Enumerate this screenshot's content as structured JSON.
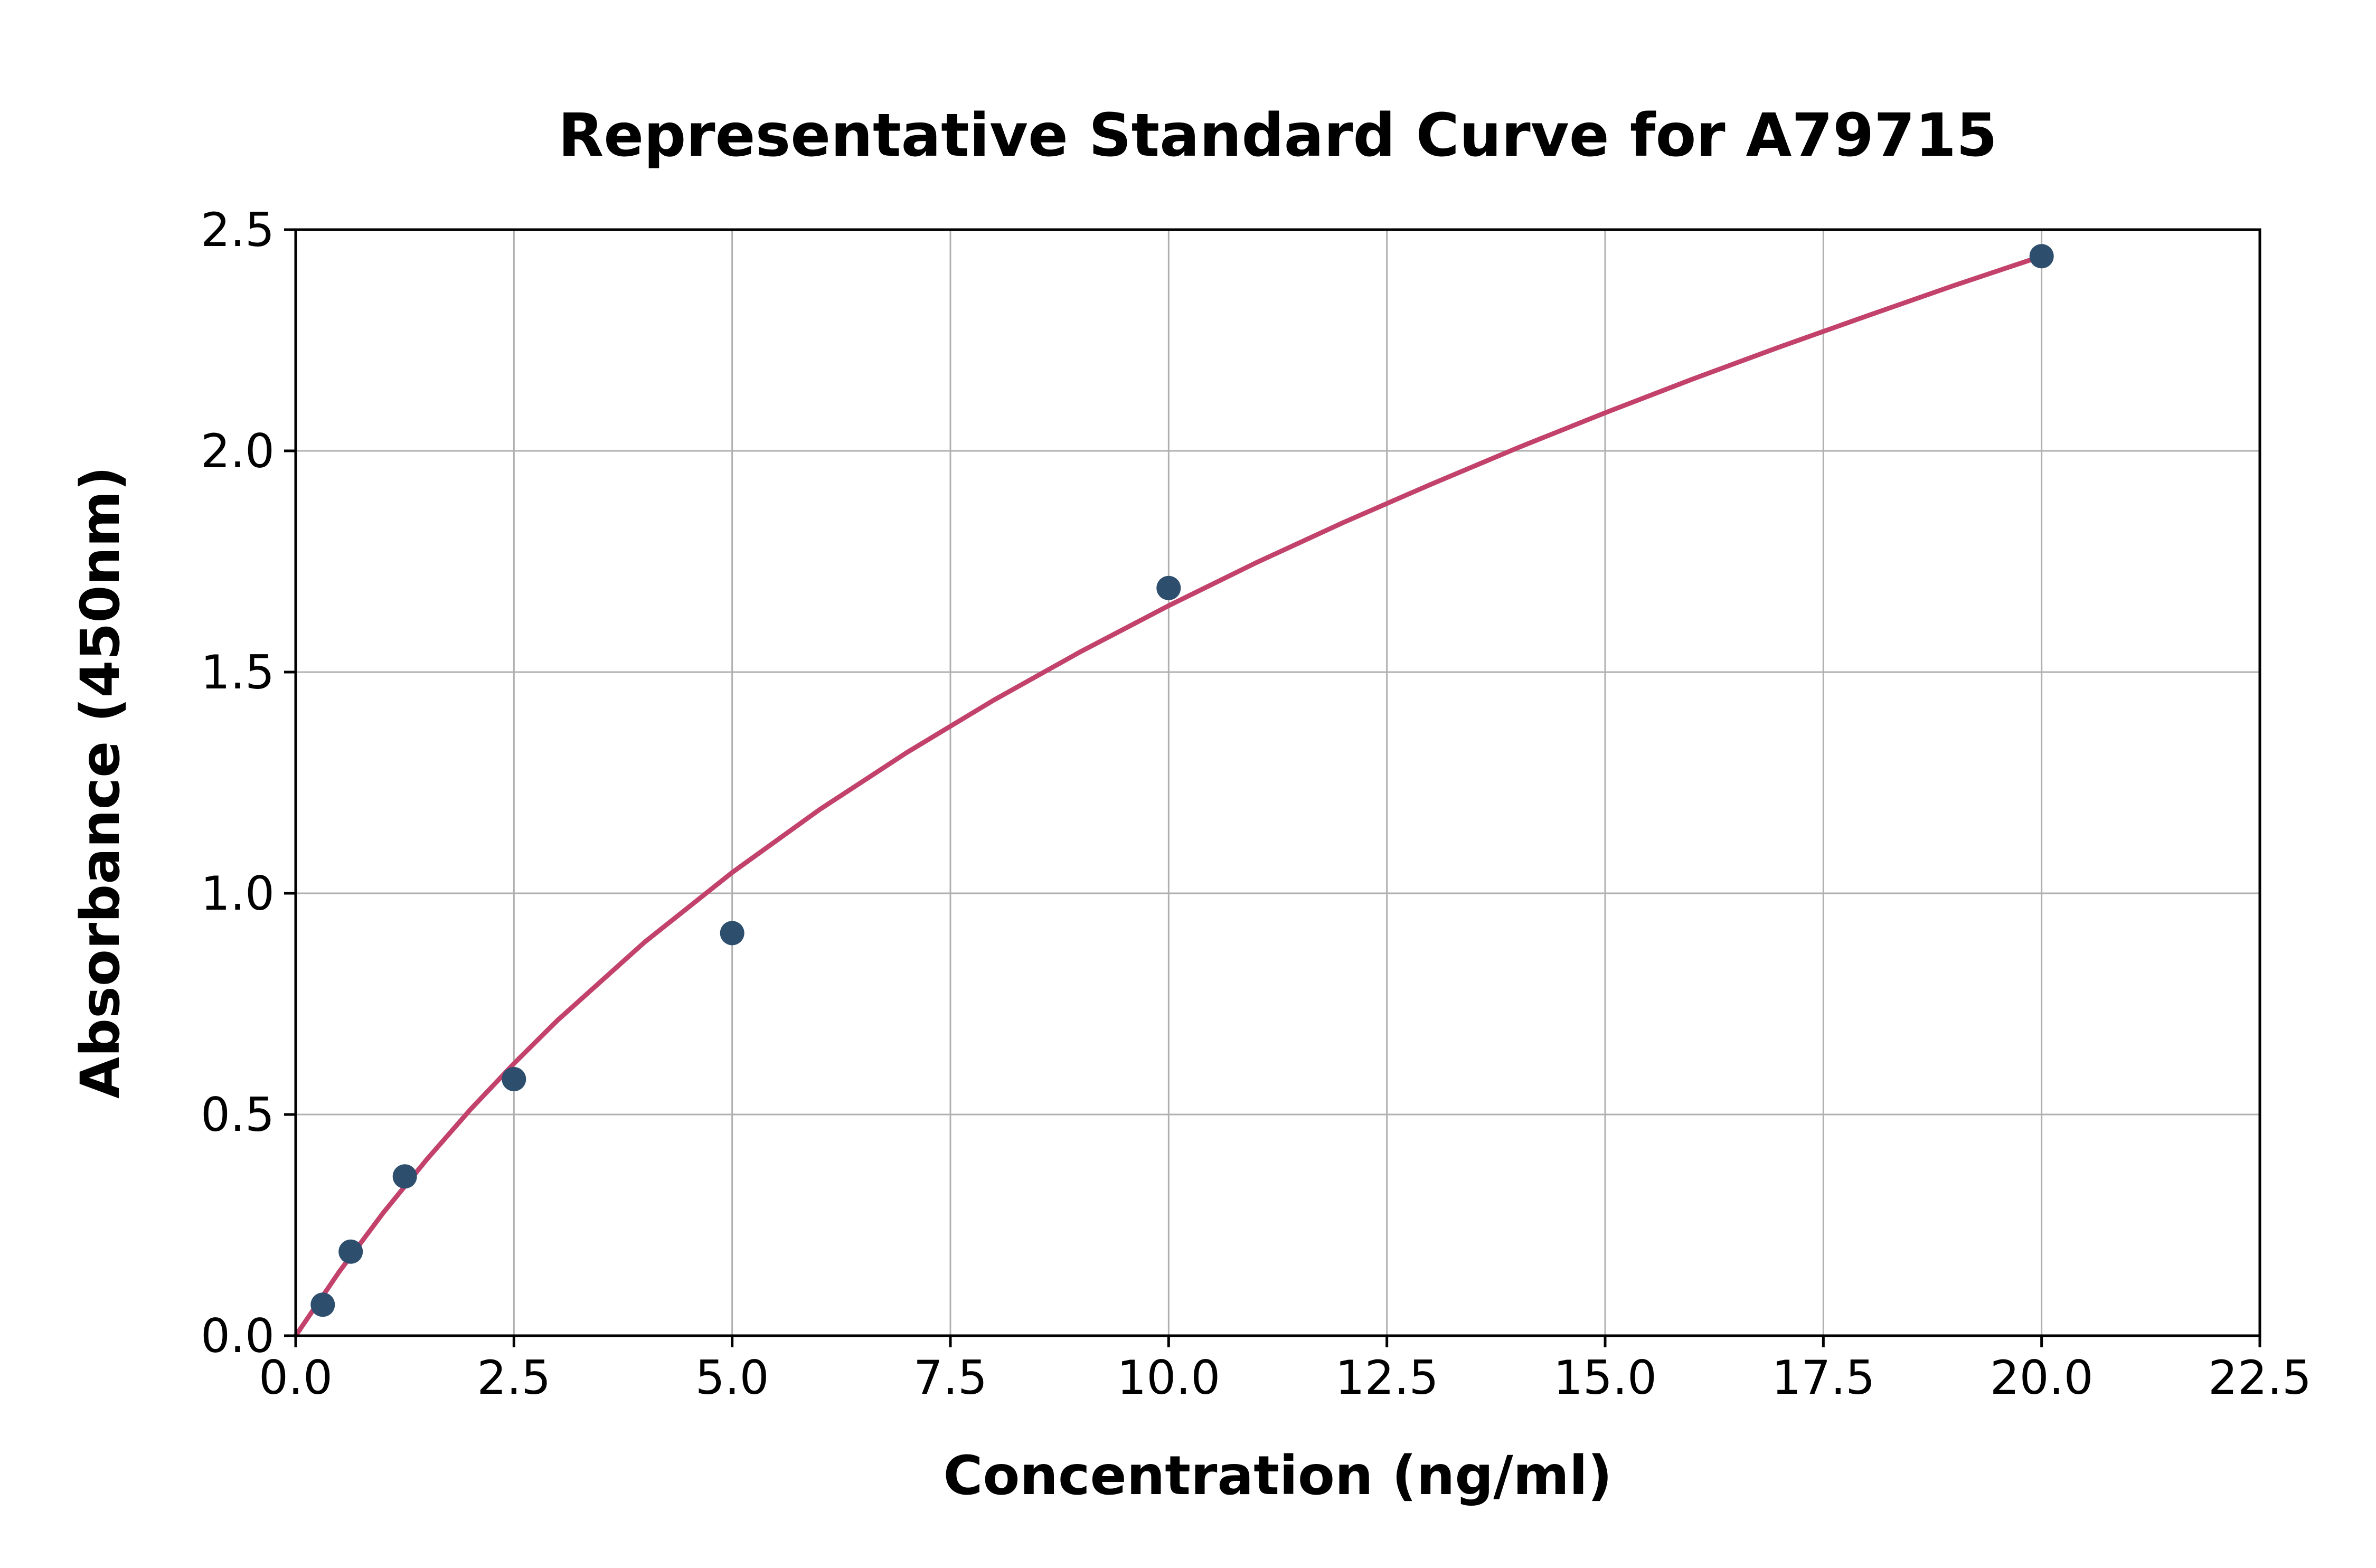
{
  "colors": {
    "background": "#ffffff",
    "curve": "#c2426b",
    "marker": "#2e4e6e",
    "grid": "#b0b0b0",
    "axis": "#000000",
    "text": "#000000"
  },
  "chart_data": {
    "type": "scatter",
    "title": "Representative Standard Curve for A79715",
    "xlabel": "Concentration (ng/ml)",
    "ylabel": "Absorbance (450nm)",
    "xlim": [
      0,
      22.5
    ],
    "ylim": [
      0,
      2.5
    ],
    "grid": true,
    "legend": false,
    "x_ticks": [
      0.0,
      2.5,
      5.0,
      7.5,
      10.0,
      12.5,
      15.0,
      17.5,
      20.0,
      22.5
    ],
    "x_tick_labels": [
      "0.0",
      "2.5",
      "5.0",
      "7.5",
      "10.0",
      "12.5",
      "15.0",
      "17.5",
      "20.0",
      "22.5"
    ],
    "y_ticks": [
      0.0,
      0.5,
      1.0,
      1.5,
      2.0,
      2.5
    ],
    "y_tick_labels": [
      "0.0",
      "0.5",
      "1.0",
      "1.5",
      "2.0",
      "2.5"
    ],
    "series": [
      {
        "name": "fit-curve",
        "type": "line",
        "color": "#c2426b",
        "points": [
          [
            0.0,
            0.0
          ],
          [
            0.5,
            0.145
          ],
          [
            1.0,
            0.277
          ],
          [
            1.5,
            0.398
          ],
          [
            2.0,
            0.511
          ],
          [
            2.5,
            0.615
          ],
          [
            3.0,
            0.713
          ],
          [
            4.0,
            0.89
          ],
          [
            5.0,
            1.047
          ],
          [
            6.0,
            1.189
          ],
          [
            7.0,
            1.318
          ],
          [
            8.0,
            1.437
          ],
          [
            9.0,
            1.547
          ],
          [
            10.0,
            1.65
          ],
          [
            11.0,
            1.747
          ],
          [
            12.0,
            1.838
          ],
          [
            13.0,
            1.924
          ],
          [
            14.0,
            2.007
          ],
          [
            15.0,
            2.086
          ],
          [
            16.0,
            2.162
          ],
          [
            17.0,
            2.235
          ],
          [
            18.0,
            2.305
          ],
          [
            19.0,
            2.374
          ],
          [
            20.0,
            2.44
          ]
        ]
      },
      {
        "name": "standard-points",
        "type": "scatter",
        "color": "#2e4e6e",
        "points": [
          [
            0.31,
            0.07
          ],
          [
            0.63,
            0.19
          ],
          [
            1.25,
            0.36
          ],
          [
            2.5,
            0.58
          ],
          [
            5.0,
            0.91
          ],
          [
            10.0,
            1.69
          ],
          [
            20.0,
            2.44
          ]
        ]
      }
    ]
  }
}
